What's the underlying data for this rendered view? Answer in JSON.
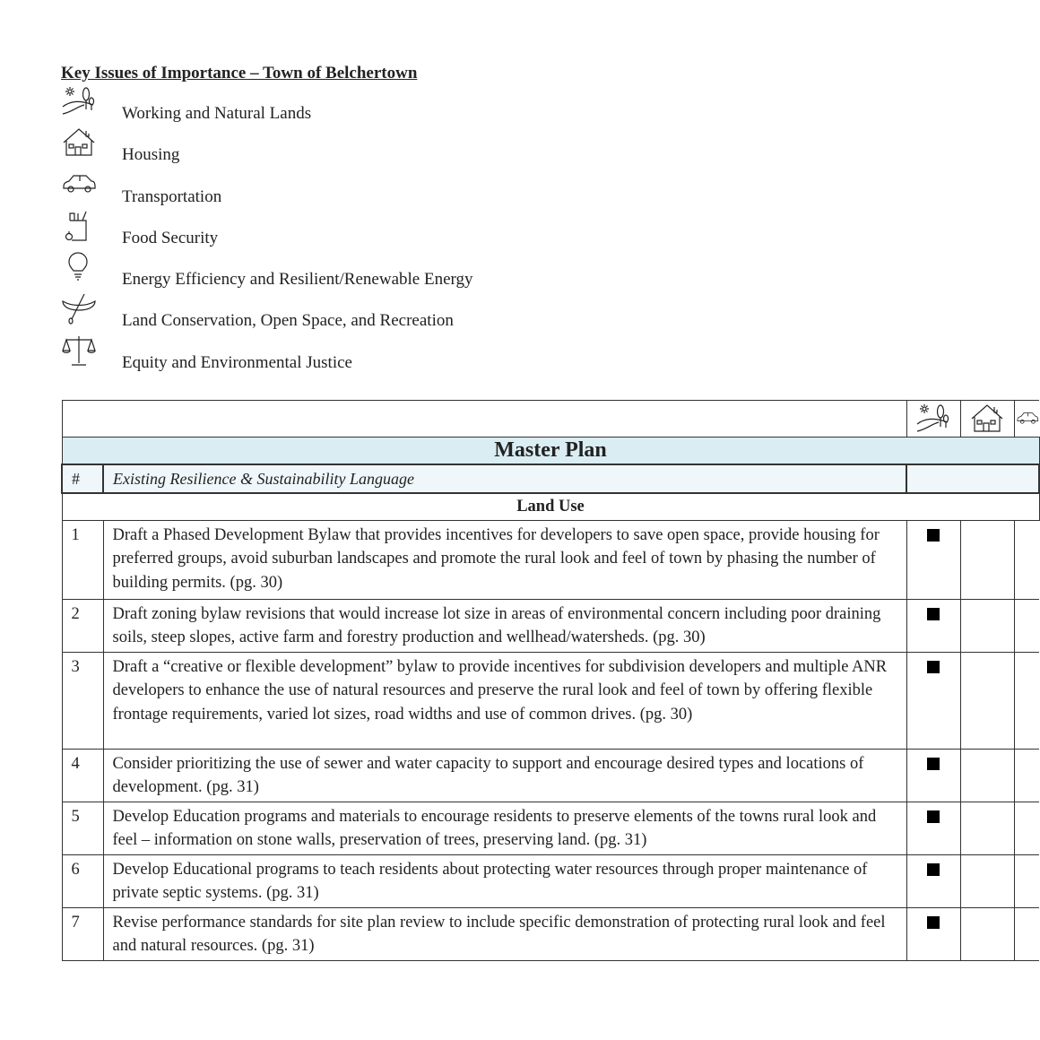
{
  "title": "Key Issues of Importance – Town of Belchertown",
  "legend": [
    {
      "icon": "landscape-icon",
      "label": "Working and Natural Lands"
    },
    {
      "icon": "house-icon",
      "label": "Housing"
    },
    {
      "icon": "car-icon",
      "label": "Transportation"
    },
    {
      "icon": "grocery-bag-icon",
      "label": "Food Security"
    },
    {
      "icon": "lightbulb-icon",
      "label": "Energy Efficiency and Resilient/Renewable Energy"
    },
    {
      "icon": "canoe-icon",
      "label": "Land Conservation, Open Space, and Recreation"
    },
    {
      "icon": "scales-icon",
      "label": "Equity and Environmental Justice"
    }
  ],
  "table": {
    "section_title": "Master Plan",
    "col_num": "#",
    "col_text": "Existing Resilience & Sustainability Language",
    "subsection": "Land Use",
    "rows": [
      {
        "num": "1",
        "text": "Draft a Phased Development Bylaw that provides incentives for developers to save open space, provide housing for preferred groups, avoid suburban landscapes and promote the rural look and feel of town by phasing the number of building permits. (pg. 30)",
        "working_lands": true,
        "housing": false
      },
      {
        "num": "2",
        "text": "Draft zoning bylaw revisions that would increase lot size in areas of environmental concern including poor draining soils, steep slopes, active farm and forestry production and wellhead/watersheds. (pg. 30)",
        "working_lands": true,
        "housing": false
      },
      {
        "num": "3",
        "text": "Draft a “creative or flexible development” bylaw to provide incentives for subdivision developers and multiple ANR developers to enhance the use of natural resources and preserve the rural look and feel of town by offering flexible frontage requirements, varied lot sizes, road widths and use of common drives. (pg. 30)",
        "working_lands": true,
        "housing": false
      },
      {
        "num": "4",
        "text": "Consider prioritizing the use of sewer and water capacity to support and encourage desired types and locations of development. (pg. 31)",
        "working_lands": true,
        "housing": false
      },
      {
        "num": "5",
        "text": "Develop Education programs and materials to encourage residents to preserve elements of the towns rural look and feel – information on stone walls, preservation of trees, preserving land. (pg. 31)",
        "working_lands": true,
        "housing": false
      },
      {
        "num": "6",
        "text": "Develop Educational programs to teach residents about protecting water resources through proper maintenance of private septic systems. (pg. 31)",
        "working_lands": true,
        "housing": false
      },
      {
        "num": "7",
        "text": "Revise performance standards for site plan review to include specific demonstration of protecting rural look and feel and natural resources. (pg. 31)",
        "working_lands": true,
        "housing": false
      }
    ]
  }
}
